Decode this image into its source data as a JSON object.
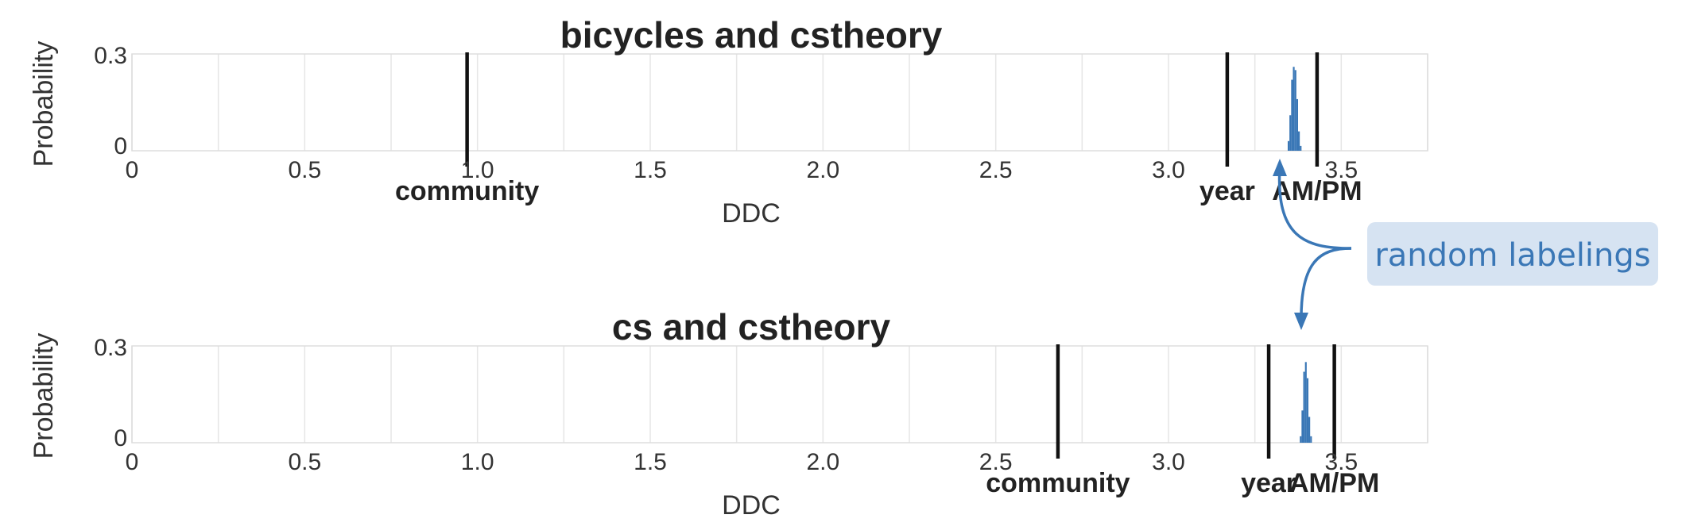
{
  "chart_data": [
    {
      "type": "histogram",
      "title": "bicycles and cstheory",
      "xlabel": "DDC",
      "ylabel": "Probability",
      "xlim": [
        0,
        3.75
      ],
      "ylim": [
        0,
        0.3
      ],
      "x_ticks": [
        "0",
        "0.5",
        "1.0",
        "1.5",
        "2.0",
        "2.5",
        "3.0",
        "3.5"
      ],
      "y_ticks": [
        "0",
        "0.3"
      ],
      "grid": true,
      "bar_color": "#3a77b6",
      "histogram": {
        "bins": [
          3.345,
          3.35,
          3.355,
          3.36,
          3.365,
          3.37,
          3.375,
          3.38
        ],
        "probability": [
          0.03,
          0.11,
          0.22,
          0.26,
          0.25,
          0.16,
          0.06,
          0.015
        ]
      },
      "markers": [
        {
          "label": "community",
          "x": 0.97
        },
        {
          "label": "year",
          "x": 3.17
        },
        {
          "label": "AM/PM",
          "x": 3.43
        }
      ]
    },
    {
      "type": "histogram",
      "title": "cs and cstheory",
      "xlabel": "DDC",
      "ylabel": "Probability",
      "xlim": [
        0,
        3.75
      ],
      "ylim": [
        0,
        0.3
      ],
      "x_ticks": [
        "0",
        "0.5",
        "1.0",
        "1.5",
        "2.0",
        "2.5",
        "3.0",
        "3.5"
      ],
      "y_ticks": [
        "0",
        "0.3"
      ],
      "grid": true,
      "bar_color": "#3a77b6",
      "histogram": {
        "bins": [
          3.38,
          3.385,
          3.39,
          3.395,
          3.4,
          3.405,
          3.41
        ],
        "probability": [
          0.02,
          0.1,
          0.22,
          0.25,
          0.2,
          0.08,
          0.02
        ]
      },
      "markers": [
        {
          "label": "community",
          "x": 2.68
        },
        {
          "label": "year",
          "x": 3.29
        },
        {
          "label": "AM/PM",
          "x": 3.48
        }
      ]
    }
  ],
  "annotation": {
    "text": "random labelings",
    "color": "#3a77b6",
    "background": "#d6e3f2"
  }
}
